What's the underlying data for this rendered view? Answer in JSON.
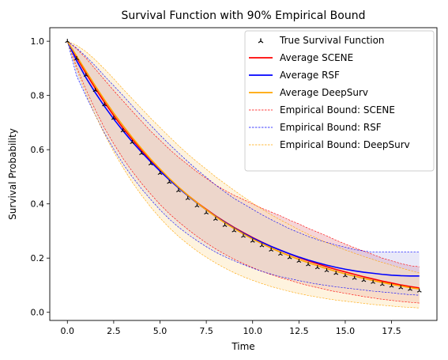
{
  "chart_data": {
    "type": "line",
    "title": "Survival Function with 90% Empirical Bound",
    "xlabel": "Time",
    "ylabel": "Survival Probability",
    "xlim": [
      -0.95,
      19.95
    ],
    "ylim": [
      -0.03,
      1.05
    ],
    "xticks": [
      0.0,
      2.5,
      5.0,
      7.5,
      10.0,
      12.5,
      15.0,
      17.5
    ],
    "xtick_labels": [
      "0.0",
      "2.5",
      "5.0",
      "7.5",
      "10.0",
      "12.5",
      "15.0",
      "17.5"
    ],
    "yticks": [
      0.0,
      0.2,
      0.4,
      0.6,
      0.8,
      1.0
    ],
    "ytick_labels": [
      "0.0",
      "0.2",
      "0.4",
      "0.6",
      "0.8",
      "1.0"
    ],
    "grid": false,
    "legend_position": "top-right",
    "x": [
      0,
      0.5,
      1,
      1.5,
      2,
      2.5,
      3,
      3.5,
      4,
      4.5,
      5,
      5.5,
      6,
      6.5,
      7,
      7.5,
      8,
      8.5,
      9,
      9.5,
      10,
      10.5,
      11,
      11.5,
      12,
      12.5,
      13,
      13.5,
      14,
      14.5,
      15,
      15.5,
      16,
      16.5,
      17,
      17.5,
      18,
      18.5,
      19
    ],
    "series": [
      {
        "name": "True Survival Function",
        "style": "markers",
        "color": "#000000",
        "values": [
          1.0,
          0.936,
          0.875,
          0.819,
          0.766,
          0.716,
          0.67,
          0.627,
          0.586,
          0.548,
          0.513,
          0.48,
          0.449,
          0.42,
          0.393,
          0.367,
          0.344,
          0.321,
          0.301,
          0.281,
          0.263,
          0.246,
          0.23,
          0.215,
          0.202,
          0.189,
          0.176,
          0.165,
          0.154,
          0.144,
          0.135,
          0.126,
          0.118,
          0.111,
          0.103,
          0.097,
          0.091,
          0.085,
          0.079
        ]
      },
      {
        "name": "Average SCENE",
        "style": "line",
        "color": "#ff0000",
        "values": [
          1.0,
          0.94,
          0.882,
          0.827,
          0.775,
          0.726,
          0.68,
          0.638,
          0.598,
          0.56,
          0.525,
          0.492,
          0.461,
          0.432,
          0.405,
          0.38,
          0.356,
          0.334,
          0.313,
          0.294,
          0.276,
          0.259,
          0.243,
          0.229,
          0.215,
          0.202,
          0.19,
          0.179,
          0.168,
          0.158,
          0.149,
          0.14,
          0.131,
          0.123,
          0.115,
          0.108,
          0.101,
          0.095,
          0.09
        ]
      },
      {
        "name": "Average RSF",
        "style": "line",
        "color": "#0000ff",
        "values": [
          1.0,
          0.928,
          0.866,
          0.811,
          0.76,
          0.713,
          0.67,
          0.629,
          0.591,
          0.555,
          0.521,
          0.489,
          0.459,
          0.43,
          0.403,
          0.378,
          0.354,
          0.332,
          0.311,
          0.292,
          0.274,
          0.258,
          0.243,
          0.229,
          0.216,
          0.204,
          0.193,
          0.183,
          0.174,
          0.166,
          0.159,
          0.153,
          0.148,
          0.144,
          0.14,
          0.137,
          0.135,
          0.134,
          0.134
        ]
      },
      {
        "name": "Average DeepSurv",
        "style": "line",
        "color": "#ffa500",
        "values": [
          1.0,
          0.945,
          0.89,
          0.836,
          0.784,
          0.735,
          0.689,
          0.645,
          0.604,
          0.565,
          0.529,
          0.494,
          0.462,
          0.432,
          0.404,
          0.378,
          0.353,
          0.33,
          0.309,
          0.289,
          0.27,
          0.253,
          0.237,
          0.222,
          0.208,
          0.195,
          0.183,
          0.172,
          0.161,
          0.151,
          0.142,
          0.133,
          0.125,
          0.117,
          0.11,
          0.103,
          0.097,
          0.091,
          0.086
        ]
      }
    ],
    "bounds": [
      {
        "name": "Empirical Bound: SCENE",
        "color": "#ff0000",
        "fill": "#e3868f",
        "fill_opacity": 0.35,
        "lower": [
          1.0,
          0.905,
          0.822,
          0.748,
          0.68,
          0.622,
          0.568,
          0.52,
          0.476,
          0.436,
          0.398,
          0.364,
          0.334,
          0.306,
          0.28,
          0.256,
          0.234,
          0.214,
          0.196,
          0.18,
          0.165,
          0.151,
          0.139,
          0.128,
          0.118,
          0.108,
          0.099,
          0.091,
          0.083,
          0.076,
          0.07,
          0.064,
          0.058,
          0.053,
          0.048,
          0.044,
          0.04,
          0.037,
          0.034
        ],
        "upper": [
          1.0,
          0.972,
          0.938,
          0.898,
          0.858,
          0.818,
          0.78,
          0.742,
          0.705,
          0.668,
          0.635,
          0.602,
          0.572,
          0.545,
          0.518,
          0.494,
          0.47,
          0.45,
          0.432,
          0.416,
          0.4,
          0.384,
          0.37,
          0.356,
          0.34,
          0.326,
          0.31,
          0.296,
          0.282,
          0.266,
          0.252,
          0.238,
          0.226,
          0.213,
          0.2,
          0.19,
          0.18,
          0.172,
          0.168
        ]
      },
      {
        "name": "Empirical Bound: RSF",
        "color": "#0000ff",
        "fill": "#b4b4e8",
        "fill_opacity": 0.3,
        "lower": [
          1.0,
          0.872,
          0.798,
          0.728,
          0.662,
          0.602,
          0.548,
          0.5,
          0.456,
          0.416,
          0.378,
          0.344,
          0.314,
          0.288,
          0.264,
          0.242,
          0.222,
          0.205,
          0.19,
          0.176,
          0.163,
          0.151,
          0.141,
          0.132,
          0.124,
          0.117,
          0.11,
          0.104,
          0.099,
          0.094,
          0.09,
          0.086,
          0.082,
          0.078,
          0.075,
          0.072,
          0.068,
          0.065,
          0.063
        ],
        "upper": [
          1.0,
          0.975,
          0.944,
          0.91,
          0.872,
          0.836,
          0.8,
          0.762,
          0.725,
          0.69,
          0.654,
          0.62,
          0.588,
          0.556,
          0.526,
          0.498,
          0.47,
          0.444,
          0.42,
          0.4,
          0.38,
          0.36,
          0.342,
          0.325,
          0.308,
          0.294,
          0.28,
          0.268,
          0.258,
          0.248,
          0.24,
          0.232,
          0.226,
          0.222,
          0.222,
          0.222,
          0.222,
          0.222,
          0.222
        ]
      },
      {
        "name": "Empirical Bound: DeepSurv",
        "color": "#ffa500",
        "fill": "#fde4b6",
        "fill_opacity": 0.45,
        "lower": [
          1.0,
          0.895,
          0.808,
          0.728,
          0.658,
          0.592,
          0.534,
          0.48,
          0.432,
          0.388,
          0.348,
          0.312,
          0.28,
          0.252,
          0.226,
          0.203,
          0.182,
          0.163,
          0.146,
          0.131,
          0.118,
          0.106,
          0.095,
          0.086,
          0.077,
          0.069,
          0.062,
          0.056,
          0.05,
          0.045,
          0.041,
          0.037,
          0.033,
          0.029,
          0.026,
          0.023,
          0.02,
          0.018,
          0.016
        ],
        "upper": [
          1.0,
          0.985,
          0.962,
          0.932,
          0.898,
          0.862,
          0.824,
          0.788,
          0.752,
          0.716,
          0.682,
          0.648,
          0.615,
          0.584,
          0.555,
          0.528,
          0.5,
          0.475,
          0.45,
          0.426,
          0.403,
          0.381,
          0.36,
          0.341,
          0.323,
          0.305,
          0.288,
          0.272,
          0.257,
          0.243,
          0.23,
          0.218,
          0.206,
          0.195,
          0.184,
          0.174,
          0.164,
          0.154,
          0.145
        ]
      }
    ]
  }
}
